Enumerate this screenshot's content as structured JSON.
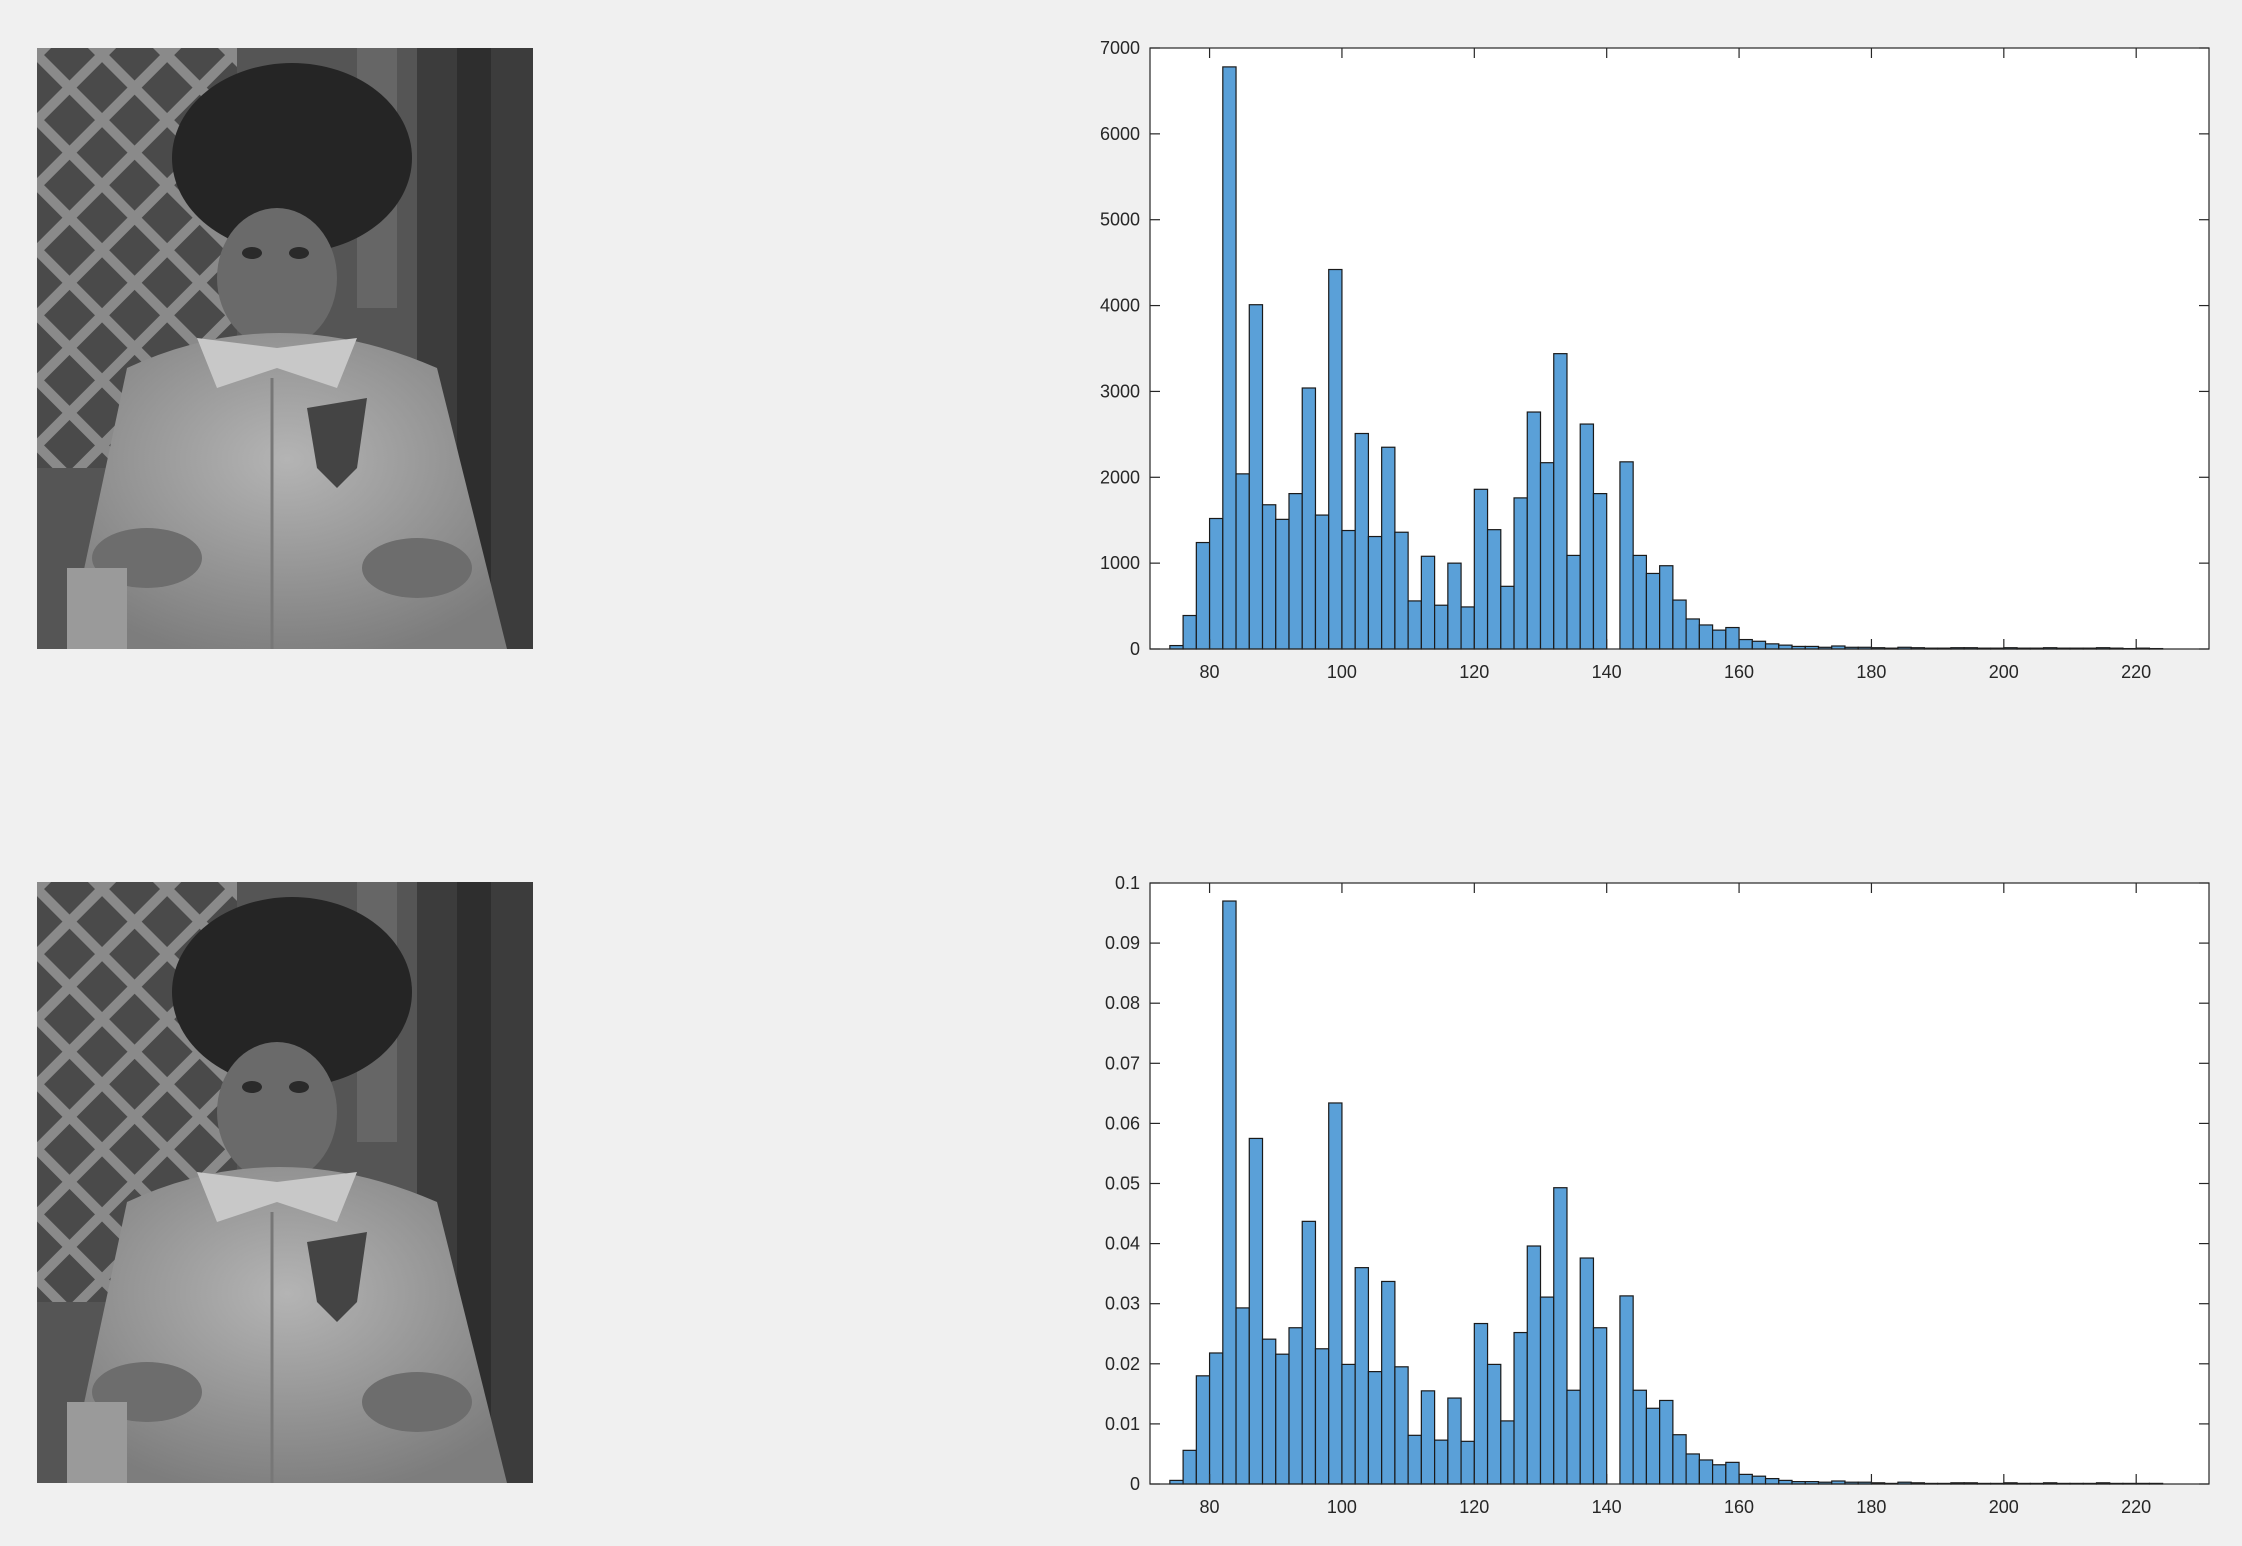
{
  "figure": {
    "background": "#f0f0f0",
    "bar_fill": "#5aa0d8",
    "bar_edge": "#1a1a1a"
  },
  "chart_data": [
    {
      "type": "bar",
      "title": "",
      "xlabel": "",
      "ylabel": "",
      "xlim": [
        71,
        231
      ],
      "ylim": [
        0,
        7000
      ],
      "grid": false,
      "bin_width": 2,
      "xticks": [
        80,
        100,
        120,
        140,
        160,
        180,
        200,
        220
      ],
      "yticks": [
        0,
        1000,
        2000,
        3000,
        4000,
        5000,
        6000,
        7000
      ],
      "ytick_labels": [
        "0",
        "1000",
        "2000",
        "3000",
        "4000",
        "5000",
        "6000",
        "7000"
      ],
      "bin_starts": [
        74,
        76,
        78,
        80,
        82,
        84,
        86,
        88,
        90,
        92,
        94,
        96,
        98,
        100,
        102,
        104,
        106,
        108,
        110,
        112,
        114,
        116,
        118,
        120,
        122,
        124,
        126,
        128,
        130,
        132,
        134,
        136,
        138,
        140,
        142,
        144,
        146,
        148,
        150,
        152,
        154,
        156,
        158,
        160,
        162,
        164,
        166,
        168,
        170,
        172,
        174,
        176,
        178,
        180,
        182,
        184,
        186,
        188,
        190,
        192,
        194,
        196,
        198,
        200,
        202,
        204,
        206,
        208,
        210,
        212,
        214,
        216,
        218,
        220,
        222
      ],
      "values": [
        40,
        390,
        1240,
        1520,
        6780,
        2040,
        4010,
        1680,
        1510,
        1810,
        3040,
        1560,
        4420,
        1380,
        2510,
        1310,
        2350,
        1360,
        560,
        1080,
        510,
        1000,
        490,
        1860,
        1390,
        730,
        1760,
        2760,
        2170,
        3440,
        1090,
        2620,
        1810,
        0,
        2180,
        1090,
        880,
        970,
        570,
        350,
        280,
        220,
        250,
        110,
        90,
        60,
        45,
        30,
        30,
        20,
        35,
        20,
        20,
        15,
        10,
        20,
        15,
        10,
        10,
        15,
        15,
        10,
        10,
        15,
        10,
        10,
        15,
        10,
        10,
        10,
        15,
        10,
        5,
        10,
        5
      ]
    },
    {
      "type": "bar",
      "title": "",
      "xlabel": "",
      "ylabel": "",
      "xlim": [
        71,
        231
      ],
      "ylim": [
        0,
        0.1
      ],
      "grid": false,
      "bin_width": 2,
      "xticks": [
        80,
        100,
        120,
        140,
        160,
        180,
        200,
        220
      ],
      "yticks": [
        0,
        0.01,
        0.02,
        0.03,
        0.04,
        0.05,
        0.06,
        0.07,
        0.08,
        0.09,
        0.1
      ],
      "ytick_labels": [
        "0",
        "0.01",
        "0.02",
        "0.03",
        "0.04",
        "0.05",
        "0.06",
        "0.07",
        "0.08",
        "0.09",
        "0.1"
      ],
      "bin_starts": [
        74,
        76,
        78,
        80,
        82,
        84,
        86,
        88,
        90,
        92,
        94,
        96,
        98,
        100,
        102,
        104,
        106,
        108,
        110,
        112,
        114,
        116,
        118,
        120,
        122,
        124,
        126,
        128,
        130,
        132,
        134,
        136,
        138,
        140,
        142,
        144,
        146,
        148,
        150,
        152,
        154,
        156,
        158,
        160,
        162,
        164,
        166,
        168,
        170,
        172,
        174,
        176,
        178,
        180,
        182,
        184,
        186,
        188,
        190,
        192,
        194,
        196,
        198,
        200,
        202,
        204,
        206,
        208,
        210,
        212,
        214,
        216,
        218,
        220,
        222
      ],
      "values": [
        0.0006,
        0.0056,
        0.018,
        0.0218,
        0.097,
        0.0293,
        0.0575,
        0.0241,
        0.0216,
        0.026,
        0.0437,
        0.0225,
        0.0634,
        0.0199,
        0.036,
        0.0187,
        0.0337,
        0.0195,
        0.0081,
        0.0155,
        0.0073,
        0.0143,
        0.0071,
        0.0267,
        0.0199,
        0.0105,
        0.0252,
        0.0396,
        0.0311,
        0.0493,
        0.0156,
        0.0376,
        0.026,
        0,
        0.0313,
        0.0156,
        0.0126,
        0.0139,
        0.0082,
        0.005,
        0.004,
        0.0032,
        0.0036,
        0.0016,
        0.0013,
        0.0009,
        0.0006,
        0.0004,
        0.0004,
        0.0003,
        0.0005,
        0.0003,
        0.0003,
        0.0002,
        0.0001,
        0.0003,
        0.0002,
        0.0001,
        0.0001,
        0.0002,
        0.0002,
        0.0001,
        0.0001,
        0.0002,
        0.0001,
        0.0001,
        0.0002,
        0.0001,
        0.0001,
        0.0001,
        0.0002,
        0.0001,
        0.0001,
        0.0001,
        0.0001
      ]
    }
  ]
}
